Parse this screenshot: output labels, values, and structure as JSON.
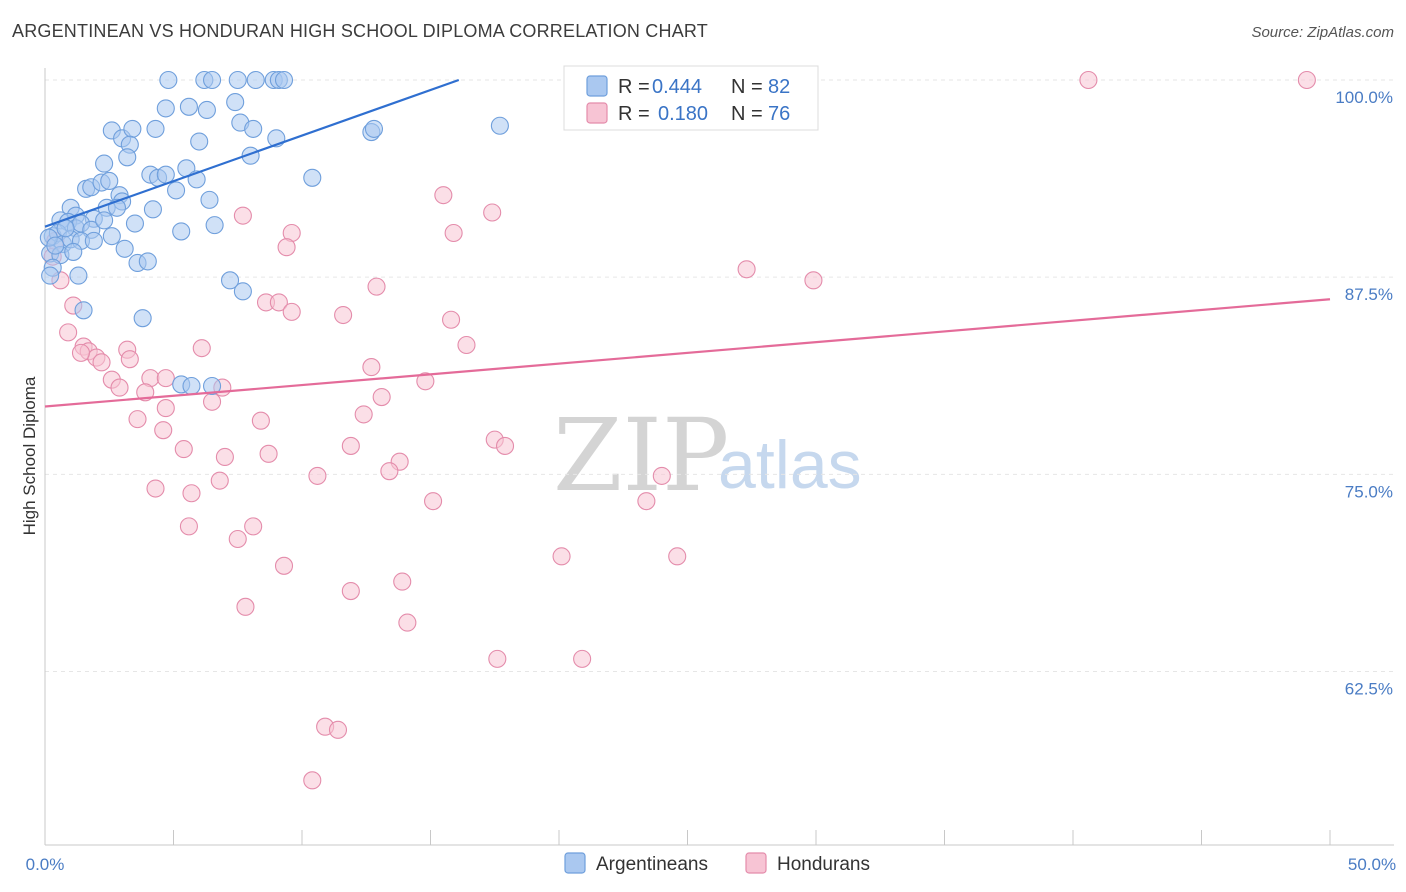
{
  "header": {
    "title": "ARGENTINEAN VS HONDURAN HIGH SCHOOL DIPLOMA CORRELATION CHART",
    "source": "Source: ZipAtlas.com"
  },
  "watermark": {
    "zip": "ZIP",
    "atlas": "atlas"
  },
  "legend_top": [
    {
      "r_label": "R =",
      "r_value": "0.444",
      "n_label": "N =",
      "n_value": "82"
    },
    {
      "r_label": "R =",
      "r_value": "0.180",
      "n_label": "N =",
      "n_value": "76"
    }
  ],
  "legend_bottom": {
    "series_a": "Argentineans",
    "series_b": "Hondurans"
  },
  "colors": {
    "blue_fill": "#aac8f0",
    "blue_stroke": "#6f9fdc",
    "blue_line": "#2f6fd0",
    "pink_fill": "#f7c4d4",
    "pink_stroke": "#e48cab",
    "pink_line": "#e46b99",
    "tick_label": "#4a7cc4",
    "grid": "#e6e6e6"
  },
  "chart_data": {
    "type": "scatter",
    "title": "ARGENTINEAN VS HONDURAN HIGH SCHOOL DIPLOMA CORRELATION CHART",
    "xlabel": "",
    "ylabel": "High School Diploma",
    "xlim": [
      0,
      50
    ],
    "ylim": [
      51.5,
      100
    ],
    "x_tick_labels": [
      "0.0%",
      "50.0%"
    ],
    "y_ticks": [
      62.5,
      75.0,
      87.5,
      100.0
    ],
    "y_tick_labels": [
      "62.5%",
      "75.0%",
      "87.5%",
      "100.0%"
    ],
    "grid": true,
    "legend_position": "top-center",
    "series": [
      {
        "name": "Argentineans",
        "r": 0.444,
        "n": 82,
        "trend": {
          "x": [
            0,
            16.1
          ],
          "y": [
            90.7,
            100
          ]
        },
        "points": [
          [
            4.8,
            100
          ],
          [
            6.2,
            100
          ],
          [
            6.5,
            100
          ],
          [
            7.5,
            100
          ],
          [
            8.2,
            100
          ],
          [
            8.9,
            100
          ],
          [
            9.1,
            100
          ],
          [
            9.3,
            100
          ],
          [
            4.7,
            98.2
          ],
          [
            5.6,
            98.3
          ],
          [
            6.3,
            98.1
          ],
          [
            7.4,
            98.6
          ],
          [
            7.6,
            97.3
          ],
          [
            8.1,
            96.9
          ],
          [
            9.0,
            96.3
          ],
          [
            12.7,
            96.7
          ],
          [
            12.8,
            96.9
          ],
          [
            17.7,
            97.1
          ],
          [
            2.6,
            96.8
          ],
          [
            3.0,
            96.3
          ],
          [
            3.4,
            96.9
          ],
          [
            3.3,
            95.9
          ],
          [
            4.3,
            96.9
          ],
          [
            6.0,
            96.1
          ],
          [
            8.0,
            95.2
          ],
          [
            2.3,
            94.7
          ],
          [
            3.2,
            95.1
          ],
          [
            4.1,
            94.0
          ],
          [
            4.4,
            93.8
          ],
          [
            4.7,
            94.0
          ],
          [
            5.5,
            94.4
          ],
          [
            10.4,
            93.8
          ],
          [
            1.6,
            93.1
          ],
          [
            1.8,
            93.2
          ],
          [
            2.2,
            93.5
          ],
          [
            2.5,
            93.6
          ],
          [
            2.9,
            92.7
          ],
          [
            3.0,
            92.3
          ],
          [
            5.1,
            93.0
          ],
          [
            5.9,
            93.7
          ],
          [
            6.4,
            92.4
          ],
          [
            1.0,
            91.9
          ],
          [
            1.2,
            91.4
          ],
          [
            1.9,
            91.2
          ],
          [
            2.4,
            91.9
          ],
          [
            2.8,
            91.9
          ],
          [
            4.2,
            91.8
          ],
          [
            0.6,
            91.1
          ],
          [
            0.9,
            91.0
          ],
          [
            1.2,
            90.6
          ],
          [
            1.4,
            90.9
          ],
          [
            1.8,
            90.5
          ],
          [
            2.3,
            91.1
          ],
          [
            3.5,
            90.9
          ],
          [
            5.3,
            90.4
          ],
          [
            6.6,
            90.8
          ],
          [
            0.3,
            90.1
          ],
          [
            0.5,
            90.3
          ],
          [
            0.7,
            89.6
          ],
          [
            1.0,
            89.9
          ],
          [
            1.4,
            89.8
          ],
          [
            1.9,
            89.8
          ],
          [
            2.6,
            90.1
          ],
          [
            0.2,
            89.0
          ],
          [
            0.6,
            88.9
          ],
          [
            0.3,
            88.1
          ],
          [
            0.2,
            87.6
          ],
          [
            1.3,
            87.6
          ],
          [
            3.1,
            89.3
          ],
          [
            3.6,
            88.4
          ],
          [
            4.0,
            88.5
          ],
          [
            7.2,
            87.3
          ],
          [
            7.7,
            86.6
          ],
          [
            1.5,
            85.4
          ],
          [
            3.8,
            84.9
          ],
          [
            5.3,
            80.7
          ],
          [
            5.7,
            80.6
          ],
          [
            6.5,
            80.6
          ],
          [
            0.15,
            90.0
          ],
          [
            0.4,
            89.5
          ],
          [
            0.8,
            90.6
          ],
          [
            1.1,
            89.1
          ]
        ]
      },
      {
        "name": "Hondurans",
        "r": 0.18,
        "n": 76,
        "trend": {
          "x": [
            0,
            50
          ],
          "y": [
            79.3,
            86.1
          ]
        },
        "points": [
          [
            28.5,
            100
          ],
          [
            40.6,
            100
          ],
          [
            49.1,
            100
          ],
          [
            15.5,
            92.7
          ],
          [
            17.4,
            91.6
          ],
          [
            7.7,
            91.4
          ],
          [
            15.9,
            90.3
          ],
          [
            9.6,
            90.3
          ],
          [
            9.4,
            89.4
          ],
          [
            27.3,
            88.0
          ],
          [
            29.9,
            87.3
          ],
          [
            12.9,
            86.9
          ],
          [
            8.6,
            85.9
          ],
          [
            9.1,
            85.9
          ],
          [
            9.6,
            85.3
          ],
          [
            11.6,
            85.1
          ],
          [
            15.8,
            84.8
          ],
          [
            1.1,
            85.7
          ],
          [
            0.9,
            84.0
          ],
          [
            1.5,
            83.1
          ],
          [
            1.7,
            82.8
          ],
          [
            2.0,
            82.4
          ],
          [
            1.4,
            82.7
          ],
          [
            2.2,
            82.1
          ],
          [
            3.2,
            82.9
          ],
          [
            3.3,
            82.3
          ],
          [
            6.1,
            83.0
          ],
          [
            12.7,
            81.8
          ],
          [
            16.4,
            83.2
          ],
          [
            14.8,
            80.9
          ],
          [
            2.6,
            81.0
          ],
          [
            2.9,
            80.5
          ],
          [
            4.1,
            81.1
          ],
          [
            4.7,
            81.1
          ],
          [
            3.9,
            80.2
          ],
          [
            6.5,
            79.6
          ],
          [
            6.9,
            80.5
          ],
          [
            13.1,
            79.9
          ],
          [
            12.4,
            78.8
          ],
          [
            4.7,
            79.2
          ],
          [
            3.6,
            78.5
          ],
          [
            4.6,
            77.8
          ],
          [
            8.4,
            78.4
          ],
          [
            11.9,
            76.8
          ],
          [
            17.5,
            77.2
          ],
          [
            17.9,
            76.8
          ],
          [
            5.4,
            76.6
          ],
          [
            7.0,
            76.1
          ],
          [
            8.7,
            76.3
          ],
          [
            13.8,
            75.8
          ],
          [
            13.4,
            75.2
          ],
          [
            10.6,
            74.9
          ],
          [
            24.0,
            74.9
          ],
          [
            4.3,
            74.1
          ],
          [
            5.7,
            73.8
          ],
          [
            6.8,
            74.6
          ],
          [
            15.1,
            73.3
          ],
          [
            23.4,
            73.3
          ],
          [
            5.6,
            71.7
          ],
          [
            7.5,
            70.9
          ],
          [
            8.1,
            71.7
          ],
          [
            20.1,
            69.8
          ],
          [
            24.6,
            69.8
          ],
          [
            9.3,
            69.2
          ],
          [
            11.9,
            67.6
          ],
          [
            13.9,
            68.2
          ],
          [
            7.8,
            66.6
          ],
          [
            14.1,
            65.6
          ],
          [
            17.6,
            63.3
          ],
          [
            20.9,
            63.3
          ],
          [
            10.9,
            59.0
          ],
          [
            11.4,
            58.8
          ],
          [
            10.4,
            55.6
          ],
          [
            0.6,
            87.3
          ],
          [
            0.3,
            88.8
          ],
          [
            0.4,
            89.8
          ]
        ]
      }
    ]
  }
}
